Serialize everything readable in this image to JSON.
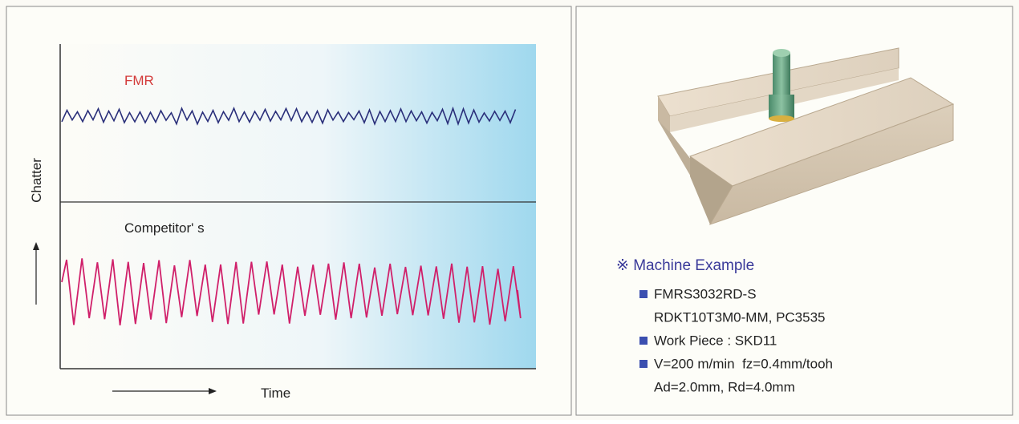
{
  "left_panel": {
    "fmr_label": "FMR",
    "competitor_label": "Competitor' s",
    "y_axis_label": "Chatter",
    "x_axis_label": "Time"
  },
  "right_panel": {
    "heading": "※ Machine Example",
    "items": [
      {
        "lines": [
          "FMRS3032RD-S",
          "RDKT10T3M0-MM, PC3535"
        ]
      },
      {
        "lines": [
          "Work Piece : SKD11"
        ]
      },
      {
        "lines": [
          "V=200 m/min  fz=0.4mm/tooh",
          "Ad=2.0mm, Rd=4.0mm"
        ]
      }
    ]
  }
}
